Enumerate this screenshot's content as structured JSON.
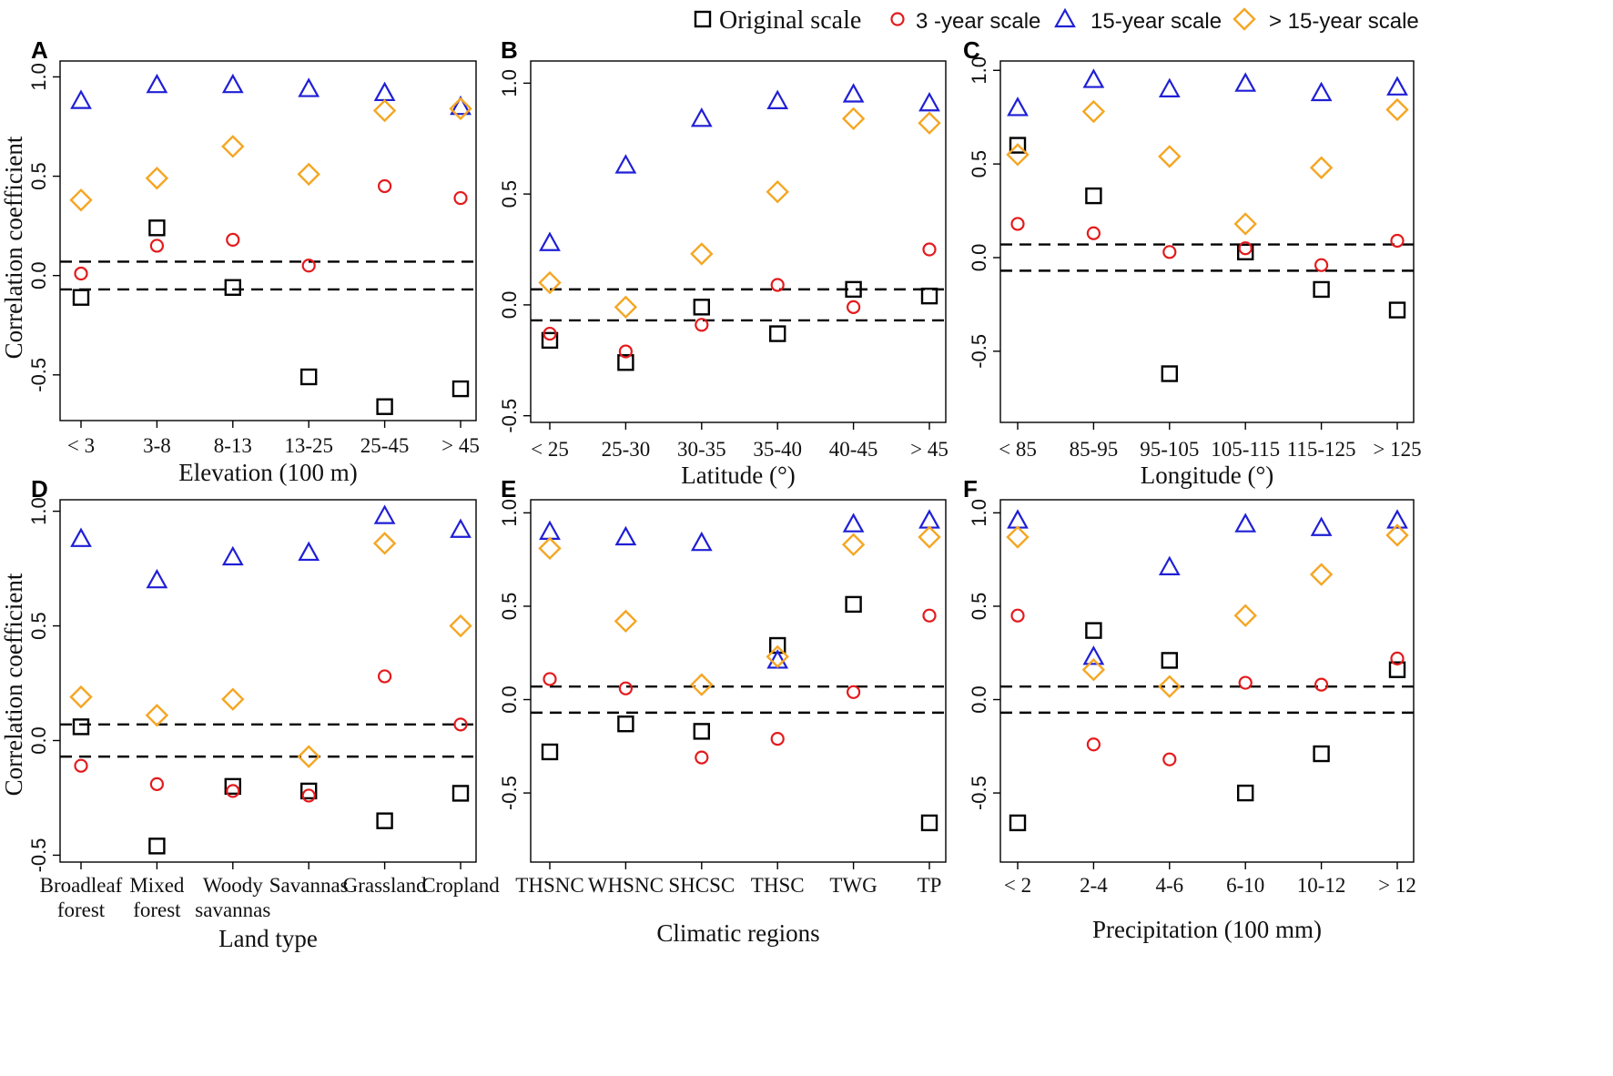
{
  "legend": {
    "items": [
      {
        "label": "Original scale",
        "marker": "square",
        "color": "#000000"
      },
      {
        "label": "3 -year scale",
        "marker": "circle",
        "color": "#e41a1c"
      },
      {
        "label": "15-year scale",
        "marker": "triangle",
        "color": "#1f1fd6"
      },
      {
        "label": "> 15-year scale",
        "marker": "diamond",
        "color": "#f5a623"
      }
    ]
  },
  "y_axis_label": "Correlation coefficient",
  "threshold_lines": [
    0.07,
    -0.07
  ],
  "chart_data": [
    {
      "panel": "A",
      "type": "scatter",
      "xlabel": "Elevation (100 m)",
      "ylabel": "Correlation coefficient",
      "categories": [
        "< 3",
        "3-8",
        "8-13",
        "13-25",
        "25-45",
        "> 45"
      ],
      "ylim": [
        -0.73,
        1.08
      ],
      "yticks": [
        -0.5,
        0.0,
        0.5,
        1.0
      ],
      "series": [
        {
          "name": "Original scale",
          "values": [
            -0.11,
            0.24,
            -0.06,
            -0.51,
            -0.66,
            -0.57
          ]
        },
        {
          "name": "3 -year scale",
          "values": [
            0.01,
            0.15,
            0.18,
            0.05,
            0.45,
            0.39
          ]
        },
        {
          "name": "15-year scale",
          "values": [
            0.88,
            0.96,
            0.96,
            0.94,
            0.92,
            0.85
          ]
        },
        {
          "name": "> 15-year scale",
          "values": [
            0.38,
            0.49,
            0.65,
            0.51,
            0.83,
            0.84
          ]
        }
      ]
    },
    {
      "panel": "B",
      "type": "scatter",
      "xlabel": "Latitude (°)",
      "ylabel": "",
      "categories": [
        "< 25",
        "25-30",
        "30-35",
        "35-40",
        "40-45",
        "> 45"
      ],
      "ylim": [
        -0.53,
        1.1
      ],
      "yticks": [
        -0.5,
        0.0,
        0.5,
        1.0
      ],
      "series": [
        {
          "name": "Original scale",
          "values": [
            -0.16,
            -0.26,
            -0.01,
            -0.13,
            0.07,
            0.04
          ]
        },
        {
          "name": "3 -year scale",
          "values": [
            -0.13,
            -0.21,
            -0.09,
            0.09,
            -0.01,
            0.25
          ]
        },
        {
          "name": "15-year scale",
          "values": [
            0.28,
            0.63,
            0.84,
            0.92,
            0.95,
            0.91
          ]
        },
        {
          "name": "> 15-year scale",
          "values": [
            0.1,
            -0.01,
            0.23,
            0.51,
            0.84,
            0.82
          ]
        }
      ]
    },
    {
      "panel": "C",
      "type": "scatter",
      "xlabel": "Longitude (°)",
      "ylabel": "",
      "categories": [
        "< 85",
        "85-95",
        "95-105",
        "105-115",
        "115-125",
        "> 125"
      ],
      "ylim": [
        -0.88,
        1.05
      ],
      "yticks": [
        -0.5,
        0.0,
        0.5,
        1.0
      ],
      "series": [
        {
          "name": "Original scale",
          "values": [
            0.6,
            0.33,
            -0.62,
            0.03,
            -0.17,
            -0.28
          ]
        },
        {
          "name": "3 -year scale",
          "values": [
            0.18,
            0.13,
            0.03,
            0.05,
            -0.04,
            0.09
          ]
        },
        {
          "name": "15-year scale",
          "values": [
            0.8,
            0.95,
            0.9,
            0.93,
            0.88,
            0.91
          ]
        },
        {
          "name": "> 15-year scale",
          "values": [
            0.55,
            0.78,
            0.54,
            0.18,
            0.48,
            0.79
          ]
        }
      ]
    },
    {
      "panel": "D",
      "type": "scatter",
      "xlabel": "Land type",
      "ylabel": "Correlation coefficient",
      "categories": [
        "Broadleaf\nforest",
        "Mixed\nforest",
        "Woody\nsavannas",
        "Savannas",
        "Grassland",
        "Cropland"
      ],
      "ylim": [
        -0.53,
        1.05
      ],
      "yticks": [
        -0.5,
        0.0,
        0.5,
        1.0
      ],
      "series": [
        {
          "name": "Original scale",
          "values": [
            0.06,
            -0.46,
            -0.2,
            -0.22,
            -0.35,
            -0.23
          ]
        },
        {
          "name": "3 -year scale",
          "values": [
            -0.11,
            -0.19,
            -0.22,
            -0.24,
            0.28,
            0.07
          ]
        },
        {
          "name": "15-year scale",
          "values": [
            0.88,
            0.7,
            0.8,
            0.82,
            0.98,
            0.92
          ]
        },
        {
          "name": "> 15-year scale",
          "values": [
            0.19,
            0.11,
            0.18,
            -0.07,
            0.86,
            0.5
          ]
        }
      ]
    },
    {
      "panel": "E",
      "type": "scatter",
      "xlabel": "Climatic regions",
      "ylabel": "",
      "categories": [
        "THSNC",
        "WHSNC",
        "SHCSC",
        "THSC",
        "TWG",
        "TP"
      ],
      "ylim": [
        -0.87,
        1.07
      ],
      "yticks": [
        -0.5,
        0.0,
        0.5,
        1.0
      ],
      "series": [
        {
          "name": "Original scale",
          "values": [
            -0.28,
            -0.13,
            -0.17,
            0.29,
            0.51,
            -0.66
          ]
        },
        {
          "name": "3 -year scale",
          "values": [
            0.11,
            0.06,
            -0.31,
            -0.21,
            0.04,
            0.45
          ]
        },
        {
          "name": "15-year scale",
          "values": [
            0.9,
            0.87,
            0.84,
            0.21,
            0.94,
            0.96
          ]
        },
        {
          "name": "> 15-year scale",
          "values": [
            0.81,
            0.42,
            0.08,
            0.23,
            0.83,
            0.87
          ]
        }
      ]
    },
    {
      "panel": "F",
      "type": "scatter",
      "xlabel": "Precipitation (100 mm)",
      "ylabel": "",
      "categories": [
        "< 2",
        "2-4",
        "4-6",
        "6-10",
        "10-12",
        "> 12"
      ],
      "ylim": [
        -0.87,
        1.07
      ],
      "yticks": [
        -0.5,
        0.0,
        0.5,
        1.0
      ],
      "series": [
        {
          "name": "Original scale",
          "values": [
            -0.66,
            0.37,
            0.21,
            -0.5,
            -0.29,
            0.16
          ]
        },
        {
          "name": "3 -year scale",
          "values": [
            0.45,
            -0.24,
            -0.32,
            0.09,
            0.08,
            0.22
          ]
        },
        {
          "name": "15-year scale",
          "values": [
            0.96,
            0.23,
            0.71,
            0.94,
            0.92,
            0.96
          ]
        },
        {
          "name": "> 15-year scale",
          "values": [
            0.87,
            0.16,
            0.07,
            0.45,
            0.67,
            0.88
          ]
        }
      ]
    }
  ]
}
